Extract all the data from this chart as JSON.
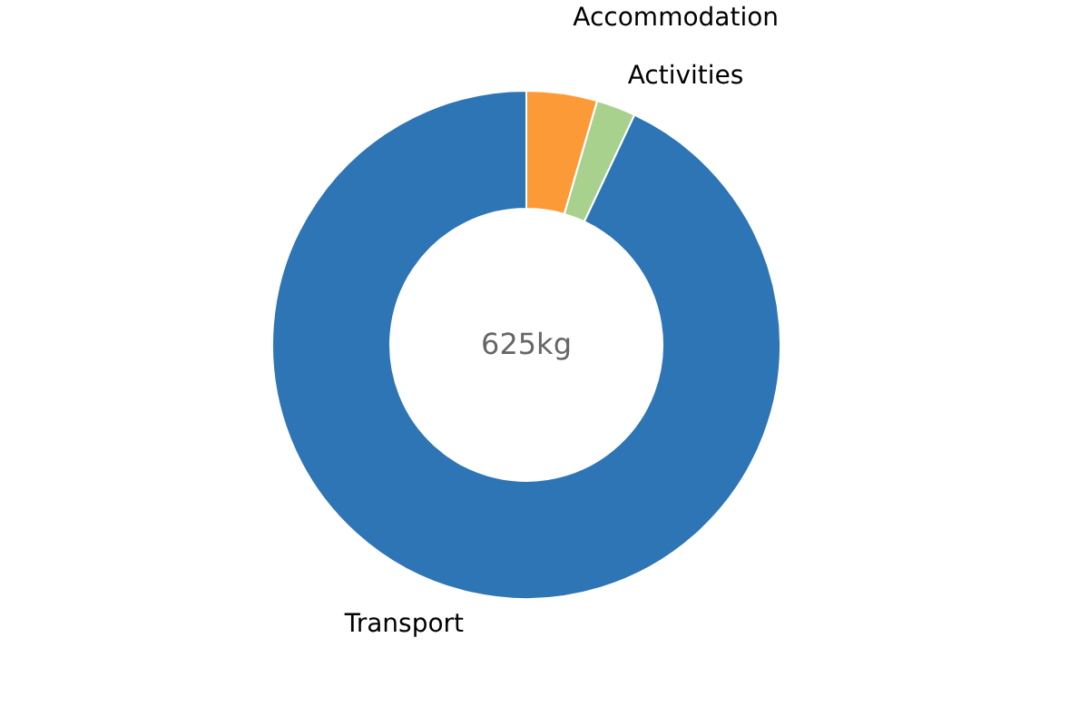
{
  "chart_data": {
    "type": "donut",
    "categories": [
      "Accommodation",
      "Activities",
      "Transport"
    ],
    "values": [
      4.5,
      2.5,
      93
    ],
    "colors": [
      "#fd9a38",
      "#a9d18e",
      "#2e75b6"
    ],
    "annotations": [
      "625kg"
    ],
    "legend": false
  }
}
